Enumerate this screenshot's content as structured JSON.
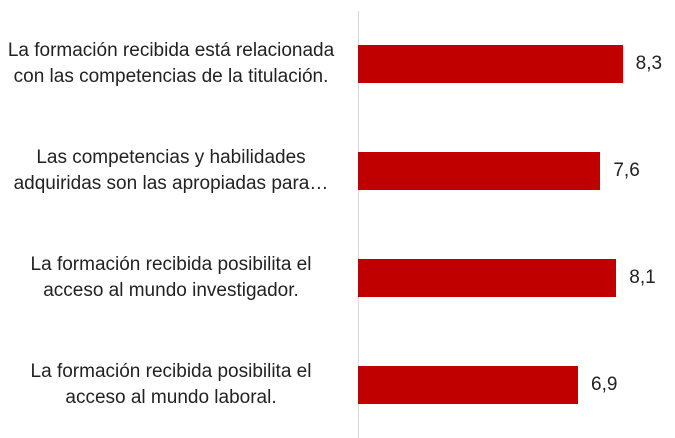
{
  "chart_data": {
    "type": "bar",
    "orientation": "horizontal",
    "categories": [
      "La formación recibida está relacionada con las competencias de la titulación.",
      "Las competencias y habilidades adquiridas son las apropiadas para…",
      "La formación recibida posibilita el acceso al mundo investigador.",
      "La formación recibida posibilita el acceso al mundo laboral."
    ],
    "values": [
      8.3,
      7.6,
      8.1,
      6.9
    ],
    "value_labels": [
      "8,3",
      "7,6",
      "8,1",
      "6,9"
    ],
    "color": "#c00000",
    "xlim": [
      0,
      9
    ]
  }
}
